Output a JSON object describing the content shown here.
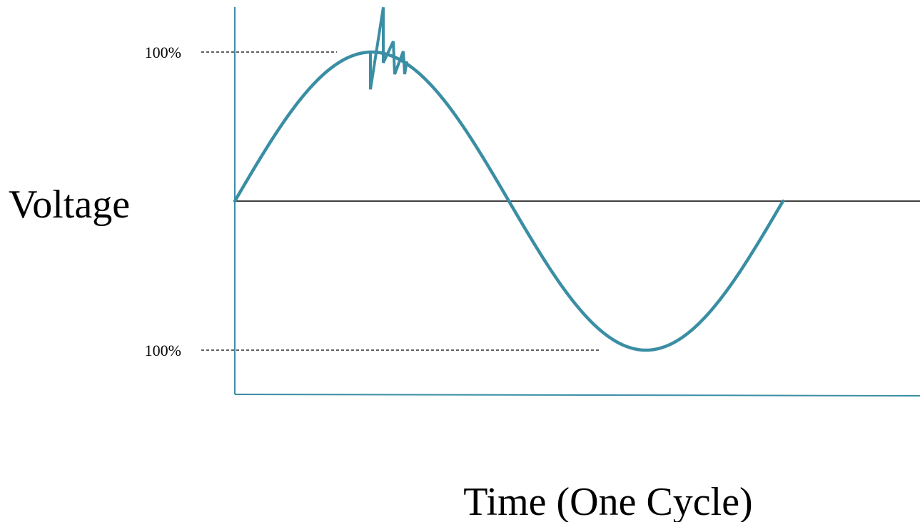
{
  "chart_data": {
    "type": "line",
    "title": "",
    "xlabel": "Time (One Cycle)",
    "ylabel": "Voltage",
    "tick_labels": {
      "upper_reference": "100%",
      "lower_reference": "100%"
    },
    "reference_levels": [
      100,
      -100
    ],
    "ylim": [
      -130,
      130
    ],
    "xlim_cycles": [
      0,
      2.5
    ],
    "grid": false,
    "series": [
      {
        "description": "sine wave voltage over one cycle with transient spike near positive peak",
        "amplitude_percent": 100,
        "cycles_shown": 1,
        "transient": {
          "near_cycle_fraction": 0.25,
          "max_value_percent": 130,
          "min_value_percent": 75
        }
      }
    ],
    "colors": {
      "wave": "#3a8ea4",
      "axis": "#3a8ea4",
      "zero_line": "#000000",
      "reference_lines": "#000000"
    }
  }
}
